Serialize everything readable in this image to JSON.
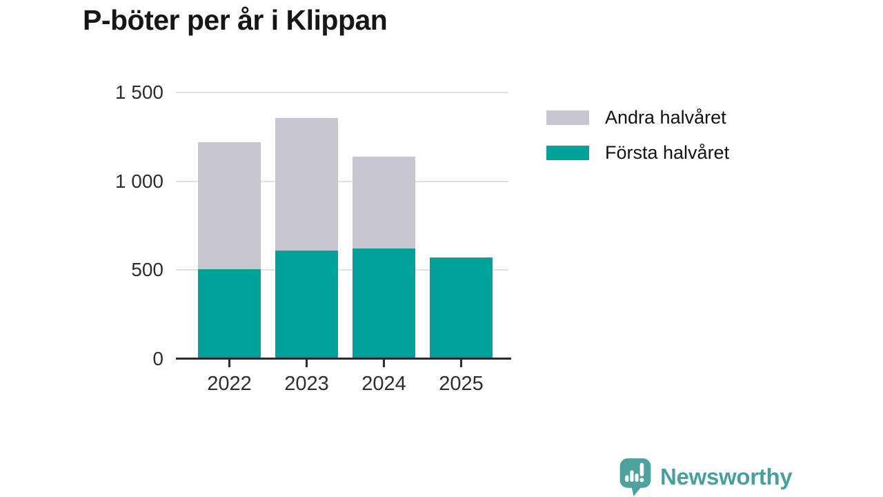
{
  "title": "P-böter per år i Klippan",
  "chart_data": {
    "type": "bar",
    "stacked": true,
    "title": "P-böter per år i Klippan",
    "categories": [
      "2022",
      "2023",
      "2024",
      "2025"
    ],
    "series": [
      {
        "name": "Första halvåret",
        "color": "#00a29a",
        "values": [
          505,
          610,
          620,
          570
        ]
      },
      {
        "name": "Andra halvåret",
        "color": "#c7c6d0",
        "values": [
          715,
          745,
          520,
          0
        ]
      }
    ],
    "xlabel": "",
    "ylabel": "",
    "ylim": [
      0,
      1500
    ],
    "yticks": [
      {
        "value": 0,
        "label": "0"
      },
      {
        "value": 500,
        "label": "500"
      },
      {
        "value": 1000,
        "label": "1 000"
      },
      {
        "value": 1500,
        "label": "1 500"
      }
    ],
    "grid": "horizontal",
    "legend_position": "right"
  },
  "legend": [
    {
      "label": "Andra halvåret",
      "color": "#c7c6d0"
    },
    {
      "label": "Första halvåret",
      "color": "#00a29a"
    }
  ],
  "branding": {
    "name": "Newsworthy",
    "color": "#47a09c",
    "icon": "newsworthy-speech-bubble-chart-icon"
  },
  "colors": {
    "background": "#ffffff",
    "grid": "#e0e0e0",
    "axis": "#2b2b2b",
    "axis_text": "#2d2d2d",
    "title_text": "#161616",
    "series_forsta": "#00a29a",
    "series_andra": "#c7c6d0"
  }
}
